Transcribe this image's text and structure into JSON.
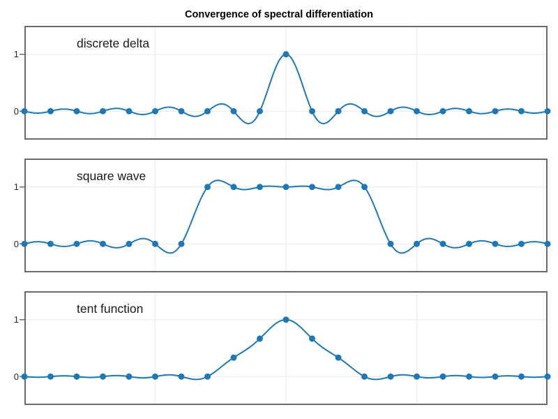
{
  "figure": {
    "title": "Convergence of spectral differentiation"
  },
  "colors": {
    "series_blue": "#1f77b4",
    "grid": "#e9e9e9",
    "spine": "#6b6b6b",
    "background": "#ffffff",
    "text": "#1a1a1a"
  },
  "chart_data": [
    {
      "type": "line",
      "label": "discrete delta",
      "interpolation": "band-limited sinc through sample points, markers at samples",
      "x": [
        -10,
        -9,
        -8,
        -7,
        -6,
        -5,
        -4,
        -3,
        -2,
        -1,
        0,
        1,
        2,
        3,
        4,
        5,
        6,
        7,
        8,
        9,
        10
      ],
      "y": [
        0,
        0,
        0,
        0,
        0,
        0,
        0,
        0,
        0,
        0,
        1,
        0,
        0,
        0,
        0,
        0,
        0,
        0,
        0,
        0,
        0
      ],
      "xlim": [
        -10,
        10
      ],
      "ylim": [
        -0.5,
        1.5
      ],
      "xgrid": [
        -5,
        0,
        5
      ],
      "ygrid": [
        0,
        1
      ],
      "yticks": [
        {
          "value": 0,
          "label": "0"
        },
        {
          "value": 1,
          "label": "1"
        }
      ]
    },
    {
      "type": "line",
      "label": "square wave",
      "interpolation": "band-limited sinc through sample points, markers at samples",
      "x": [
        -10,
        -9,
        -8,
        -7,
        -6,
        -5,
        -4,
        -3,
        -2,
        -1,
        0,
        1,
        2,
        3,
        4,
        5,
        6,
        7,
        8,
        9,
        10
      ],
      "y": [
        0,
        0,
        0,
        0,
        0,
        0,
        0,
        1,
        1,
        1,
        1,
        1,
        1,
        1,
        0,
        0,
        0,
        0,
        0,
        0,
        0
      ],
      "xlim": [
        -10,
        10
      ],
      "ylim": [
        -0.5,
        1.5
      ],
      "xgrid": [
        -5,
        0,
        5
      ],
      "ygrid": [
        0,
        1
      ],
      "yticks": [
        {
          "value": 0,
          "label": "0"
        },
        {
          "value": 1,
          "label": "1"
        }
      ]
    },
    {
      "type": "line",
      "label": "tent function",
      "interpolation": "band-limited sinc through sample points, markers at samples",
      "x": [
        -10,
        -9,
        -8,
        -7,
        -6,
        -5,
        -4,
        -3,
        -2,
        -1,
        0,
        1,
        2,
        3,
        4,
        5,
        6,
        7,
        8,
        9,
        10
      ],
      "y": [
        0,
        0,
        0,
        0,
        0,
        0,
        0,
        0,
        0.3333,
        0.6667,
        1,
        0.6667,
        0.3333,
        0,
        0,
        0,
        0,
        0,
        0,
        0,
        0
      ],
      "xlim": [
        -10,
        10
      ],
      "ylim": [
        -0.5,
        1.5
      ],
      "xgrid": [
        -5,
        0,
        5
      ],
      "ygrid": [
        0,
        1
      ],
      "yticks": [
        {
          "value": 0,
          "label": "0"
        },
        {
          "value": 1,
          "label": "1"
        }
      ]
    }
  ]
}
